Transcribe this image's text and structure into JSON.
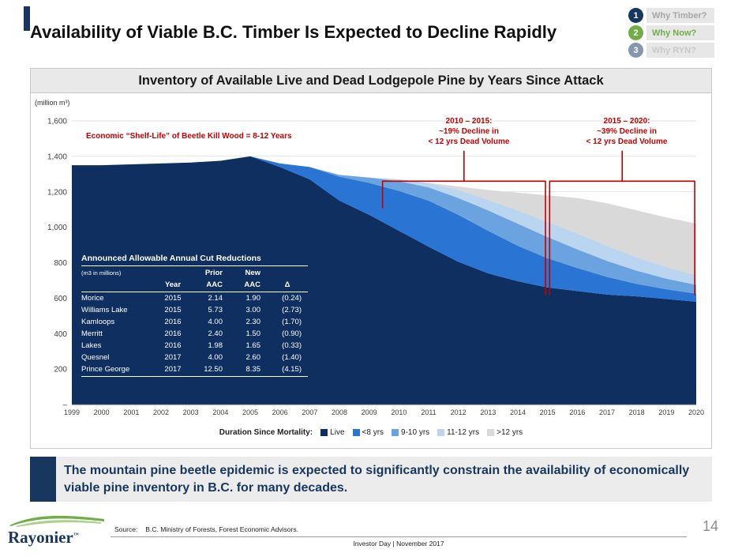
{
  "slide": {
    "title": "Availability of Viable B.C. Timber Is Expected to Decline Rapidly",
    "callout": "The mountain pine beetle epidemic is expected to significantly constrain the availability of economically viable pine inventory in B.C. for many decades.",
    "page_number": "14",
    "footer": {
      "source_label": "Source:",
      "source_text": "B.C. Ministry of Forests, Forest Economic Advisors.",
      "event_text": "Investor Day | November 2017",
      "logo_text": "Rayonier",
      "logo_tm": "™"
    }
  },
  "nav": {
    "items": [
      {
        "number": "1",
        "label": "Why Timber?",
        "circle_color": "#17375e",
        "text_color": "#a6a6a6"
      },
      {
        "number": "2",
        "label": "Why Now?",
        "circle_color": "#70ad47",
        "text_color": "#70ad47"
      },
      {
        "number": "3",
        "label": "Why RYN?",
        "circle_color": "#8496b0",
        "text_color": "#c9c9c9"
      }
    ]
  },
  "chart": {
    "panel_title": "Inventory of Available Live and Dead Lodgepole Pine by Years Since Attack",
    "y_axis_unit": "(million m³)",
    "legend_title": "Duration Since Mortality:"
  },
  "chart_data": {
    "type": "area",
    "stacked": true,
    "title": "Inventory of Available Live and Dead Lodgepole Pine by Years Since Attack",
    "xlabel": "",
    "ylabel": "(million m³)",
    "ylim": [
      0,
      1600
    ],
    "grid": true,
    "legend_position": "bottom",
    "x": [
      1999,
      2000,
      2001,
      2002,
      2003,
      2004,
      2005,
      2006,
      2007,
      2008,
      2009,
      2010,
      2011,
      2012,
      2013,
      2014,
      2015,
      2016,
      2017,
      2018,
      2019,
      2020
    ],
    "ytick_vals": [
      0,
      200,
      400,
      600,
      800,
      1000,
      1200,
      1400,
      1600
    ],
    "ytick_labels": [
      "–",
      "200",
      "400",
      "600",
      "800",
      "1,000",
      "1,200",
      "1,400",
      "1,600"
    ],
    "series": [
      {
        "name": "Live",
        "color": "#0e2f5f",
        "values": [
          1350,
          1350,
          1355,
          1360,
          1365,
          1375,
          1400,
          1340,
          1270,
          1150,
          1070,
          980,
          890,
          805,
          740,
          695,
          660,
          640,
          620,
          610,
          595,
          580
        ]
      },
      {
        "name": "<8 yrs",
        "color": "#2a75d3",
        "values": [
          0,
          0,
          0,
          0,
          0,
          0,
          0,
          20,
          70,
          135,
          180,
          225,
          260,
          265,
          240,
          200,
          165,
          130,
          100,
          70,
          55,
          45
        ]
      },
      {
        "name": "9-10 yrs",
        "color": "#6ba3e0",
        "values": [
          0,
          0,
          0,
          0,
          0,
          0,
          0,
          0,
          0,
          10,
          30,
          55,
          75,
          95,
          115,
          125,
          120,
          105,
          90,
          75,
          60,
          50
        ]
      },
      {
        "name": "11-12 yrs",
        "color": "#b9d5ef",
        "values": [
          0,
          0,
          0,
          0,
          0,
          0,
          0,
          0,
          0,
          0,
          0,
          10,
          25,
          45,
          60,
          75,
          85,
          90,
          85,
          75,
          65,
          55
        ]
      },
      {
        "name": ">12 yrs",
        "color": "#d9d9d9",
        "values": [
          0,
          0,
          0,
          0,
          0,
          0,
          0,
          0,
          0,
          0,
          0,
          0,
          0,
          20,
          55,
          100,
          150,
          200,
          240,
          265,
          280,
          290
        ]
      }
    ],
    "annotations": {
      "color": "#c00000",
      "shelf_life_note": "Economic “Shelf-Life” of Beetle Kill Wood = 8-12 Years",
      "brackets": [
        {
          "x_start": 2009.45,
          "x_end": 2014.93,
          "y_line": 1260,
          "left_drop_to": 1110,
          "right_drop_to": 620,
          "label_lines": [
            "2010 – 2015:",
            "~19% Decline in",
            "< 12 yrs Dead Volume"
          ]
        },
        {
          "x_start": 2015.07,
          "x_end": 2019.95,
          "y_line": 1260,
          "left_drop_to": 620,
          "right_drop_to": 620,
          "label_lines": [
            "2015 – 2020:",
            "~39% Decline in",
            "< 12 yrs Dead Volume"
          ]
        }
      ]
    }
  },
  "table": {
    "title": "Announced Allowable Annual Cut Reductions",
    "subtitle": "(m3 in millions)",
    "group_headers": [
      "Prior",
      "New"
    ],
    "col_headers": [
      "Year",
      "AAC",
      "AAC",
      "Δ"
    ],
    "rows": [
      [
        "Morice",
        "2015",
        "2.14",
        "1.90",
        "(0.24)"
      ],
      [
        "Williams Lake",
        "2015",
        "5.73",
        "3.00",
        "(2.73)"
      ],
      [
        "Kamloops",
        "2016",
        "4.00",
        "2.30",
        "(1.70)"
      ],
      [
        "Merritt",
        "2016",
        "2.40",
        "1.50",
        "(0.90)"
      ],
      [
        "Lakes",
        "2016",
        "1.98",
        "1.65",
        "(0.33)"
      ],
      [
        "Quesnel",
        "2017",
        "4.00",
        "2.60",
        "(1.40)"
      ],
      [
        "Prince George",
        "2017",
        "12.50",
        "8.35",
        "(4.15)"
      ]
    ]
  }
}
